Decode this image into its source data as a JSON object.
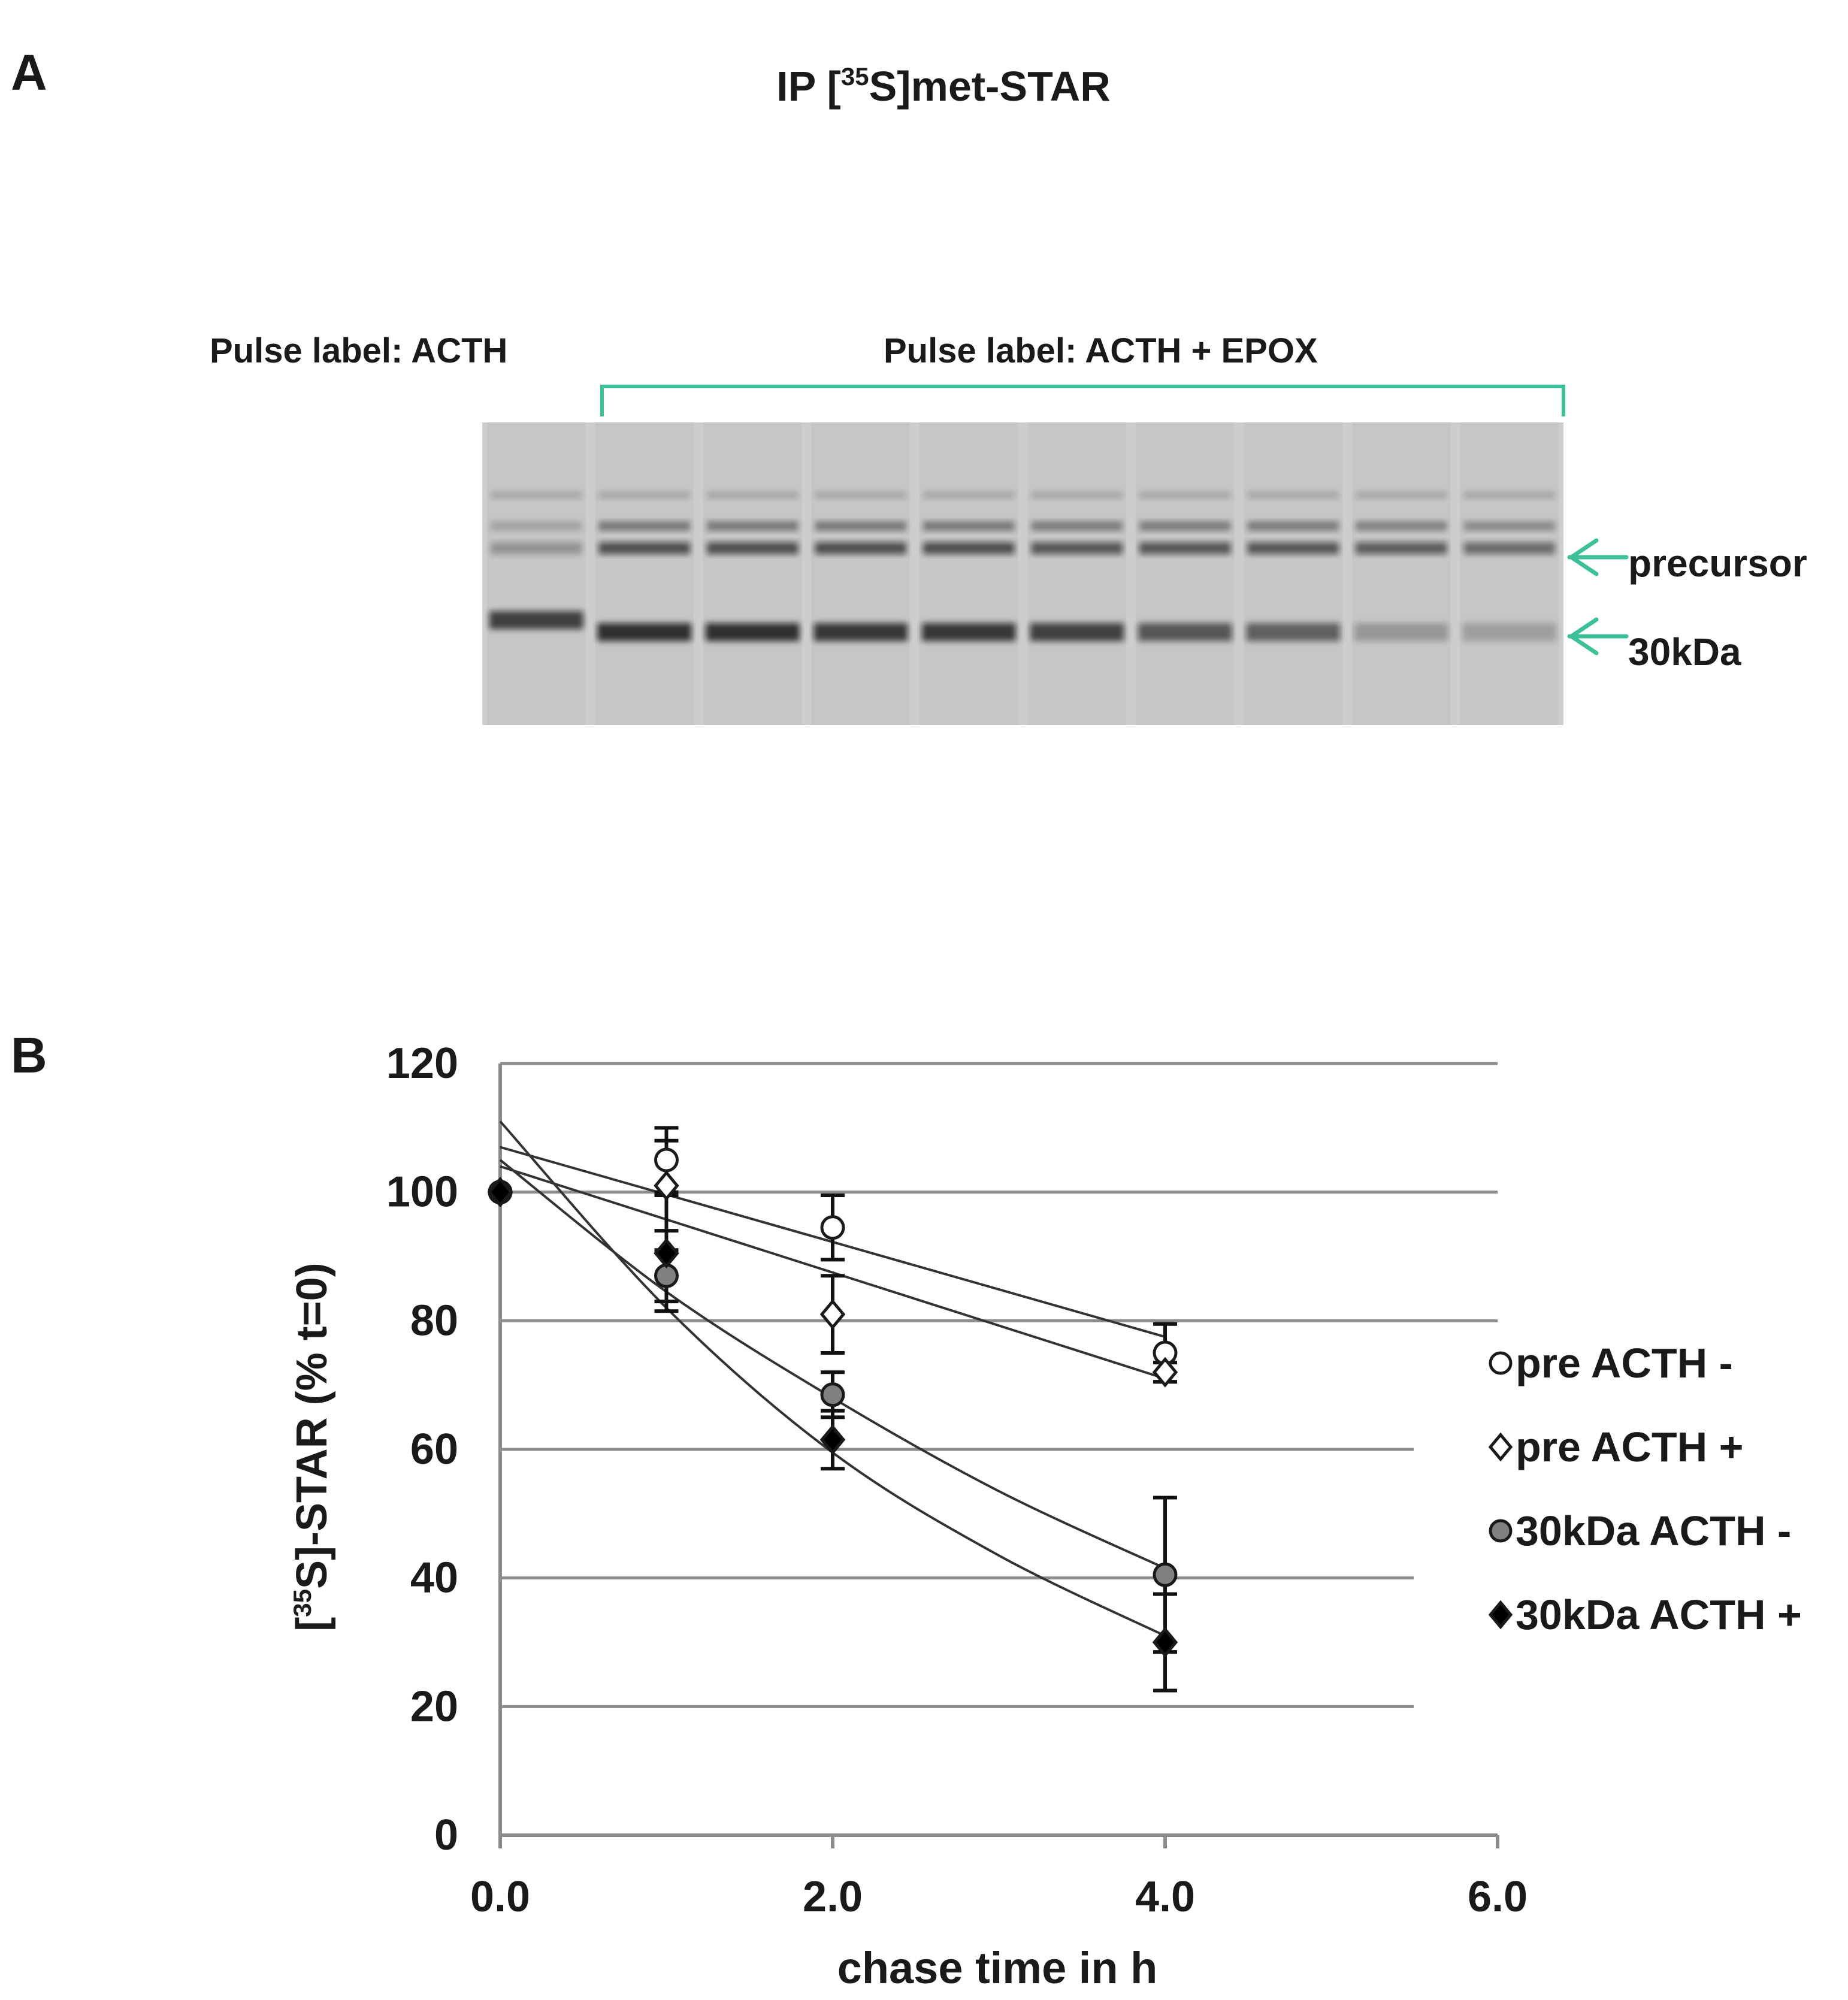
{
  "panel_a": {
    "panel_letter": "A",
    "title_prefix": "IP  [",
    "title_sup": "35",
    "title_suffix": "S]met-STAR",
    "pulse_label_left": "Pulse label:   ACTH",
    "pulse_label_right": "Pulse label:   ACTH + EPOX",
    "band_labels": {
      "precursor": "precursor",
      "mature": "30kDa"
    },
    "accent_color": "#3dbf9a",
    "lanes": [
      {
        "group": "ACTH",
        "precursor_intensity": 0.35,
        "mature_intensity": 0.85
      },
      {
        "group": "ACTH + EPOX",
        "precursor_intensity": 0.8,
        "mature_intensity": 0.95
      },
      {
        "group": "ACTH + EPOX",
        "precursor_intensity": 0.8,
        "mature_intensity": 0.95
      },
      {
        "group": "ACTH + EPOX",
        "precursor_intensity": 0.8,
        "mature_intensity": 0.9
      },
      {
        "group": "ACTH + EPOX",
        "precursor_intensity": 0.8,
        "mature_intensity": 0.9
      },
      {
        "group": "ACTH + EPOX",
        "precursor_intensity": 0.75,
        "mature_intensity": 0.85
      },
      {
        "group": "ACTH + EPOX",
        "precursor_intensity": 0.75,
        "mature_intensity": 0.7
      },
      {
        "group": "ACTH + EPOX",
        "precursor_intensity": 0.75,
        "mature_intensity": 0.65
      },
      {
        "group": "ACTH + EPOX",
        "precursor_intensity": 0.7,
        "mature_intensity": 0.3
      },
      {
        "group": "ACTH + EPOX",
        "precursor_intensity": 0.6,
        "mature_intensity": 0.25
      }
    ]
  },
  "panel_b": {
    "panel_letter": "B"
  },
  "chart_data": {
    "type": "scatter",
    "xlabel": "chase time in h",
    "ylabel_prefix": "[",
    "ylabel_sup": "35",
    "ylabel_suffix": "S]-STAR  (% t=0)",
    "xlim": [
      0,
      6
    ],
    "ylim": [
      0,
      120
    ],
    "x_ticks": [
      0,
      2,
      4,
      6
    ],
    "x_tick_labels": [
      "0.0",
      "2.0",
      "4.0",
      "6.0"
    ],
    "y_ticks": [
      0,
      20,
      40,
      60,
      80,
      100,
      120
    ],
    "y_tick_labels": [
      "0",
      "20",
      "40",
      "60",
      "80",
      "100",
      "120"
    ],
    "grid": "horizontal",
    "legend_position": "right",
    "series": [
      {
        "name": "pre ACTH -",
        "marker": "circle",
        "fill": "#ffffff",
        "x": [
          0,
          1,
          2,
          4
        ],
        "y": [
          100,
          105,
          94.5,
          75
        ],
        "err": [
          0,
          5,
          5,
          4.5
        ],
        "trendline": {
          "type": "linear",
          "x": [
            0,
            4
          ],
          "y": [
            107,
            77.5
          ]
        }
      },
      {
        "name": "pre ACTH +",
        "marker": "diamond",
        "fill": "#ffffff",
        "x": [
          0,
          1,
          2,
          4
        ],
        "y": [
          100,
          101,
          81,
          72
        ],
        "err": [
          0,
          7,
          6,
          1.5
        ],
        "trendline": {
          "type": "linear",
          "x": [
            0,
            4
          ],
          "y": [
            104,
            71
          ]
        }
      },
      {
        "name": "30kDa ACTH -",
        "marker": "circle",
        "fill": "#808080",
        "x": [
          0,
          1,
          2,
          4
        ],
        "y": [
          100,
          87,
          68.5,
          40.5
        ],
        "err": [
          0,
          4,
          3.5,
          12
        ],
        "trendline": {
          "type": "exponential",
          "x": [
            0,
            1,
            2,
            3,
            4
          ],
          "y": [
            105,
            84.5,
            68,
            53.5,
            41.5
          ]
        }
      },
      {
        "name": "30kDa ACTH +",
        "marker": "diamond",
        "fill": "#000000",
        "x": [
          0,
          1,
          2,
          4
        ],
        "y": [
          100,
          90.5,
          61.5,
          30
        ],
        "err": [
          0,
          9,
          4.5,
          7.5
        ],
        "trendline": {
          "type": "exponential",
          "x": [
            0,
            1,
            2,
            3,
            4
          ],
          "y": [
            111,
            82,
            59.5,
            43.5,
            31
          ]
        }
      }
    ]
  }
}
